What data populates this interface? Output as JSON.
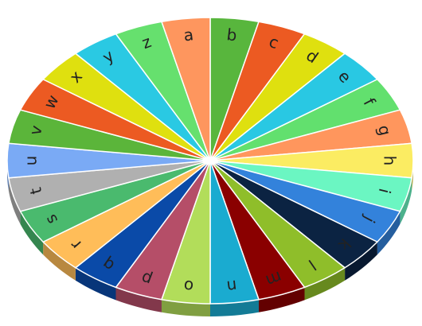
{
  "chart_data": {
    "type": "pie",
    "style": "3d-tilted",
    "start_label": "b",
    "direction": "clockwise-from-top",
    "slices": [
      {
        "label": "b",
        "value": 1,
        "color": "#58b63d"
      },
      {
        "label": "c",
        "value": 1,
        "color": "#ec5a22"
      },
      {
        "label": "d",
        "value": 1,
        "color": "#dfe00f"
      },
      {
        "label": "e",
        "value": 1,
        "color": "#29c8e3"
      },
      {
        "label": "f",
        "value": 1,
        "color": "#62e06e"
      },
      {
        "label": "g",
        "value": 1,
        "color": "#ff965d"
      },
      {
        "label": "h",
        "value": 1,
        "color": "#fbec62"
      },
      {
        "label": "i",
        "value": 1,
        "color": "#6bf6c2"
      },
      {
        "label": "j",
        "value": 1,
        "color": "#3382db"
      },
      {
        "label": "k",
        "value": 1,
        "color": "#0b2342"
      },
      {
        "label": "l",
        "value": 1,
        "color": "#8fbe2a"
      },
      {
        "label": "m",
        "value": 1,
        "color": "#8a0000"
      },
      {
        "label": "n",
        "value": 1,
        "color": "#1aabd0"
      },
      {
        "label": "o",
        "value": 1,
        "color": "#b2dd5a"
      },
      {
        "label": "p",
        "value": 1,
        "color": "#b54e68"
      },
      {
        "label": "q",
        "value": 1,
        "color": "#0a4aa8"
      },
      {
        "label": "r",
        "value": 1,
        "color": "#ffbd59"
      },
      {
        "label": "s",
        "value": 1,
        "color": "#4aba6e"
      },
      {
        "label": "t",
        "value": 1,
        "color": "#b0b0b0"
      },
      {
        "label": "u",
        "value": 1,
        "color": "#7aaaf5"
      },
      {
        "label": "v",
        "value": 1,
        "color": "#5bb53a"
      },
      {
        "label": "w",
        "value": 1,
        "color": "#ec5a22"
      },
      {
        "label": "x",
        "value": 1,
        "color": "#dfe00f"
      },
      {
        "label": "y",
        "value": 1,
        "color": "#2ac9e3"
      },
      {
        "label": "z",
        "value": 1,
        "color": "#66e06e"
      },
      {
        "label": "a",
        "value": 1,
        "color": "#fe965e"
      }
    ]
  }
}
